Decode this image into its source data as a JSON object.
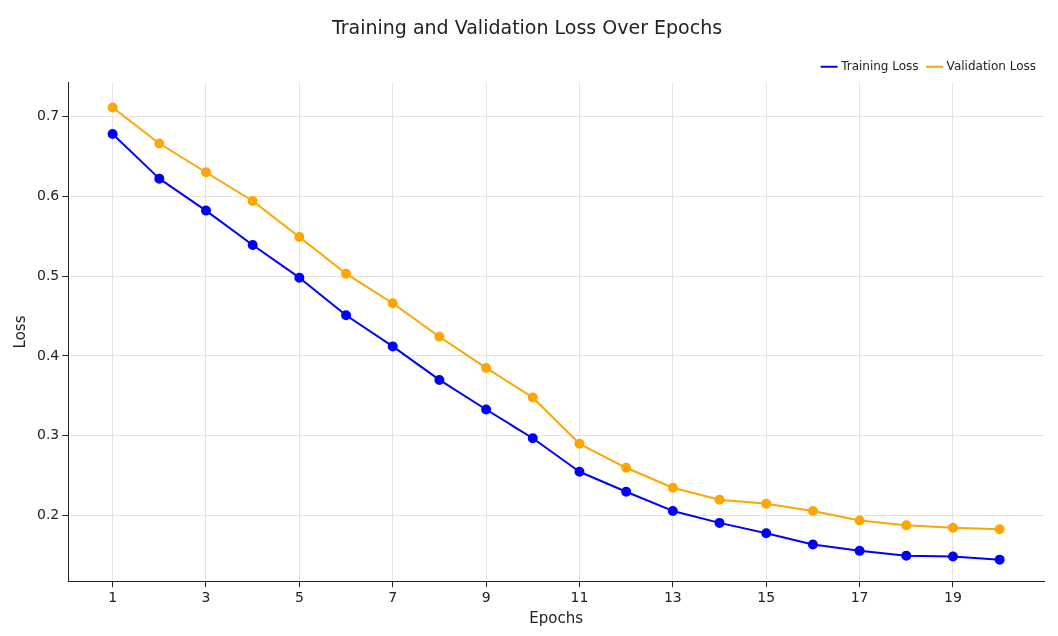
{
  "chart_data": {
    "type": "line",
    "title": "Training and Validation Loss Over Epochs",
    "xlabel": "Epochs",
    "ylabel": "Loss",
    "x": [
      1,
      2,
      3,
      4,
      5,
      6,
      7,
      8,
      9,
      10,
      11,
      12,
      13,
      14,
      15,
      16,
      17,
      18,
      19,
      20
    ],
    "series": [
      {
        "name": "Training Loss",
        "color": "#0000ff",
        "values": [
          0.678,
          0.622,
          0.582,
          0.539,
          0.498,
          0.451,
          0.412,
          0.37,
          0.333,
          0.297,
          0.255,
          0.23,
          0.206,
          0.191,
          0.178,
          0.164,
          0.156,
          0.15,
          0.149,
          0.145
        ]
      },
      {
        "name": "Validation Loss",
        "color": "#ffa500",
        "values": [
          0.711,
          0.666,
          0.63,
          0.594,
          0.549,
          0.503,
          0.466,
          0.424,
          0.385,
          0.348,
          0.29,
          0.26,
          0.235,
          0.22,
          0.215,
          0.206,
          0.194,
          0.188,
          0.185,
          0.183
        ]
      }
    ],
    "xlim": [
      0.05,
      20.95
    ],
    "xticks": [
      1,
      3,
      5,
      7,
      9,
      11,
      13,
      15,
      17,
      19
    ],
    "ylim": [
      0.118,
      0.742
    ],
    "yticks": [
      0.2,
      0.3,
      0.4,
      0.5,
      0.6,
      0.7
    ],
    "grid": true,
    "legend": "top right",
    "marker": "circle",
    "line_style": "solid"
  }
}
